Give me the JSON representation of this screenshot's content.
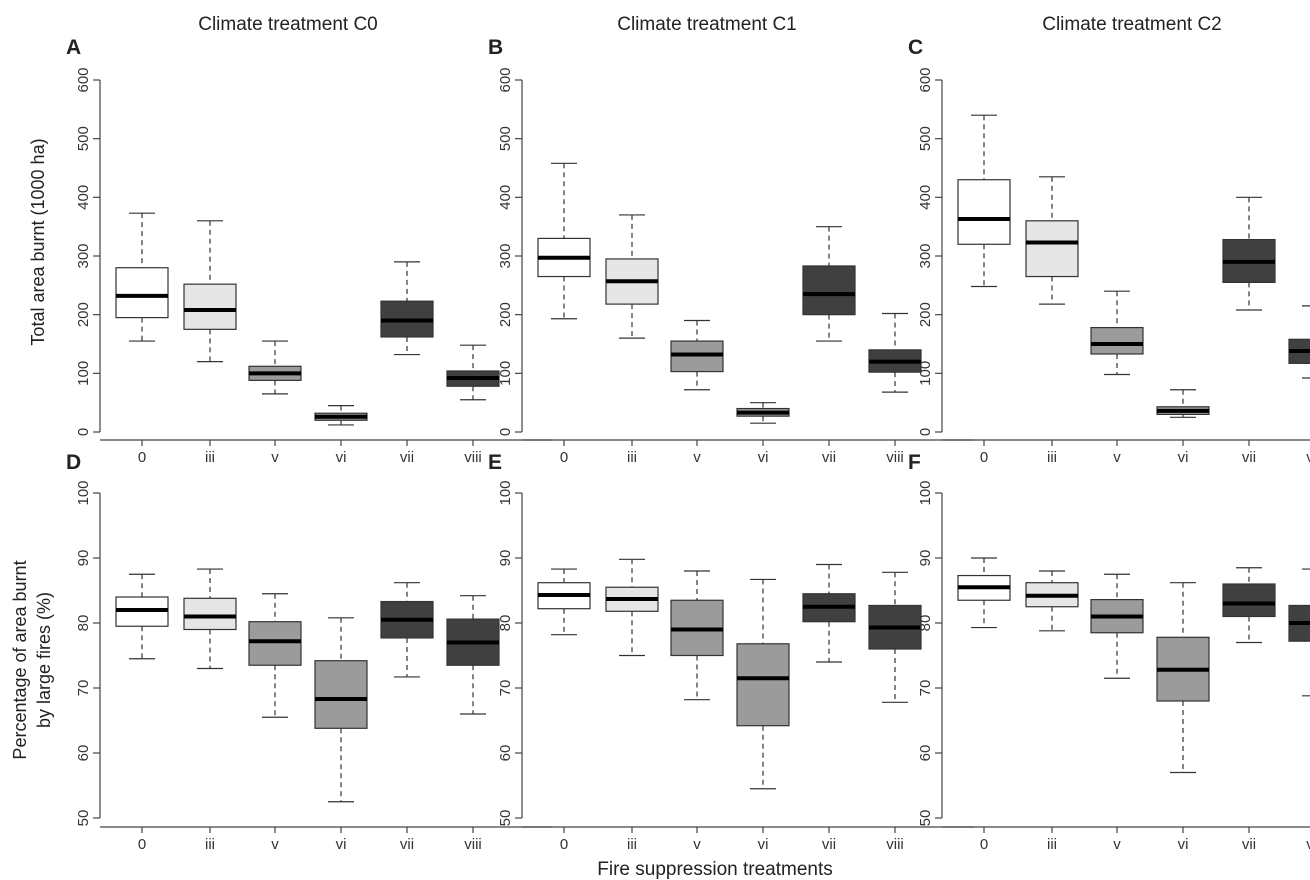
{
  "column_titles": [
    "Climate treatment C0",
    "Climate treatment C1",
    "Climate treatment C2"
  ],
  "x_axis_title": "Fire suppression treatments",
  "y_axis_titles": {
    "top": "Total area burnt (1000 ha)",
    "bottom_line1": "Percentage of area burnt",
    "bottom_line2": "by large fires (%)"
  },
  "colors": {
    "0": "#ffffff",
    "iii": "#e6e6e6",
    "v": "#9b9b9b",
    "vi": "#9b9b9b",
    "vii": "#404040",
    "viii": "#404040"
  },
  "chart_data": [
    {
      "type": "boxplot",
      "panel": "A",
      "title": "Climate treatment C0",
      "xlabel": "",
      "ylabel": "Total area burnt (1000 ha)",
      "ylim": [
        0,
        600
      ],
      "yticks": [
        0,
        100,
        200,
        300,
        400,
        500,
        600
      ],
      "categories": [
        "0",
        "iii",
        "v",
        "vi",
        "vii",
        "viii"
      ],
      "boxes": [
        {
          "min": 155,
          "q1": 195,
          "median": 232,
          "q3": 280,
          "max": 373
        },
        {
          "min": 120,
          "q1": 175,
          "median": 208,
          "q3": 252,
          "max": 360
        },
        {
          "min": 65,
          "q1": 88,
          "median": 100,
          "q3": 112,
          "max": 155
        },
        {
          "min": 12,
          "q1": 20,
          "median": 26,
          "q3": 32,
          "max": 45
        },
        {
          "min": 132,
          "q1": 162,
          "median": 190,
          "q3": 223,
          "max": 290
        },
        {
          "min": 55,
          "q1": 78,
          "median": 92,
          "q3": 104,
          "max": 148
        }
      ]
    },
    {
      "type": "boxplot",
      "panel": "B",
      "title": "Climate treatment C1",
      "xlabel": "",
      "ylabel": "",
      "ylim": [
        0,
        600
      ],
      "yticks": [
        0,
        100,
        200,
        300,
        400,
        500,
        600
      ],
      "categories": [
        "0",
        "iii",
        "v",
        "vi",
        "vii",
        "viii"
      ],
      "boxes": [
        {
          "min": 193,
          "q1": 265,
          "median": 297,
          "q3": 330,
          "max": 458
        },
        {
          "min": 160,
          "q1": 218,
          "median": 257,
          "q3": 295,
          "max": 370
        },
        {
          "min": 72,
          "q1": 103,
          "median": 132,
          "q3": 155,
          "max": 190
        },
        {
          "min": 15,
          "q1": 27,
          "median": 33,
          "q3": 40,
          "max": 50
        },
        {
          "min": 155,
          "q1": 200,
          "median": 235,
          "q3": 283,
          "max": 350
        },
        {
          "min": 68,
          "q1": 102,
          "median": 120,
          "q3": 140,
          "max": 202
        }
      ]
    },
    {
      "type": "boxplot",
      "panel": "C",
      "title": "Climate treatment C2",
      "xlabel": "",
      "ylabel": "",
      "ylim": [
        0,
        600
      ],
      "yticks": [
        0,
        100,
        200,
        300,
        400,
        500,
        600
      ],
      "categories": [
        "0",
        "iii",
        "v",
        "vi",
        "vii",
        "viii"
      ],
      "boxes": [
        {
          "min": 248,
          "q1": 320,
          "median": 363,
          "q3": 430,
          "max": 540
        },
        {
          "min": 218,
          "q1": 265,
          "median": 323,
          "q3": 360,
          "max": 435
        },
        {
          "min": 98,
          "q1": 133,
          "median": 150,
          "q3": 178,
          "max": 240
        },
        {
          "min": 25,
          "q1": 30,
          "median": 36,
          "q3": 43,
          "max": 72
        },
        {
          "min": 208,
          "q1": 255,
          "median": 290,
          "q3": 328,
          "max": 400
        },
        {
          "min": 92,
          "q1": 117,
          "median": 138,
          "q3": 158,
          "max": 215
        }
      ]
    },
    {
      "type": "boxplot",
      "panel": "D",
      "title": "",
      "xlabel": "",
      "ylabel": "Percentage of area burnt by large fires (%)",
      "ylim": [
        50,
        100
      ],
      "yticks": [
        50,
        60,
        70,
        80,
        90,
        100
      ],
      "categories": [
        "0",
        "iii",
        "v",
        "vi",
        "vii",
        "viii"
      ],
      "boxes": [
        {
          "min": 74.5,
          "q1": 79.5,
          "median": 82.0,
          "q3": 84.0,
          "max": 87.5
        },
        {
          "min": 73.0,
          "q1": 79.0,
          "median": 81.0,
          "q3": 83.8,
          "max": 88.3
        },
        {
          "min": 65.5,
          "q1": 73.5,
          "median": 77.2,
          "q3": 80.2,
          "max": 84.5
        },
        {
          "min": 52.5,
          "q1": 63.8,
          "median": 68.3,
          "q3": 74.2,
          "max": 80.8
        },
        {
          "min": 71.7,
          "q1": 77.7,
          "median": 80.5,
          "q3": 83.3,
          "max": 86.2
        },
        {
          "min": 66.0,
          "q1": 73.5,
          "median": 77.0,
          "q3": 80.6,
          "max": 84.2
        }
      ]
    },
    {
      "type": "boxplot",
      "panel": "E",
      "title": "",
      "xlabel": "Fire suppression treatments",
      "ylabel": "",
      "ylim": [
        50,
        100
      ],
      "yticks": [
        50,
        60,
        70,
        80,
        90,
        100
      ],
      "categories": [
        "0",
        "iii",
        "v",
        "vi",
        "vii",
        "viii"
      ],
      "boxes": [
        {
          "min": 78.2,
          "q1": 82.2,
          "median": 84.3,
          "q3": 86.2,
          "max": 88.3
        },
        {
          "min": 75.0,
          "q1": 81.8,
          "median": 83.7,
          "q3": 85.5,
          "max": 89.8
        },
        {
          "min": 68.2,
          "q1": 75.0,
          "median": 79.0,
          "q3": 83.5,
          "max": 88.0
        },
        {
          "min": 54.5,
          "q1": 64.2,
          "median": 71.5,
          "q3": 76.8,
          "max": 86.7
        },
        {
          "min": 74.0,
          "q1": 80.2,
          "median": 82.5,
          "q3": 84.5,
          "max": 89.0
        },
        {
          "min": 67.8,
          "q1": 76.0,
          "median": 79.3,
          "q3": 82.7,
          "max": 87.8
        }
      ]
    },
    {
      "type": "boxplot",
      "panel": "F",
      "title": "",
      "xlabel": "",
      "ylabel": "",
      "ylim": [
        50,
        100
      ],
      "yticks": [
        50,
        60,
        70,
        80,
        90,
        100
      ],
      "categories": [
        "0",
        "iii",
        "v",
        "vi",
        "vii",
        "viii"
      ],
      "boxes": [
        {
          "min": 79.3,
          "q1": 83.5,
          "median": 85.5,
          "q3": 87.3,
          "max": 90.0
        },
        {
          "min": 78.8,
          "q1": 82.5,
          "median": 84.2,
          "q3": 86.2,
          "max": 88.0
        },
        {
          "min": 71.5,
          "q1": 78.5,
          "median": 81.0,
          "q3": 83.6,
          "max": 87.5
        },
        {
          "min": 57.0,
          "q1": 68.0,
          "median": 72.8,
          "q3": 77.8,
          "max": 86.2
        },
        {
          "min": 77.0,
          "q1": 81.0,
          "median": 83.0,
          "q3": 86.0,
          "max": 88.5
        },
        {
          "min": 68.8,
          "q1": 77.2,
          "median": 80.0,
          "q3": 82.7,
          "max": 88.3
        }
      ]
    }
  ]
}
